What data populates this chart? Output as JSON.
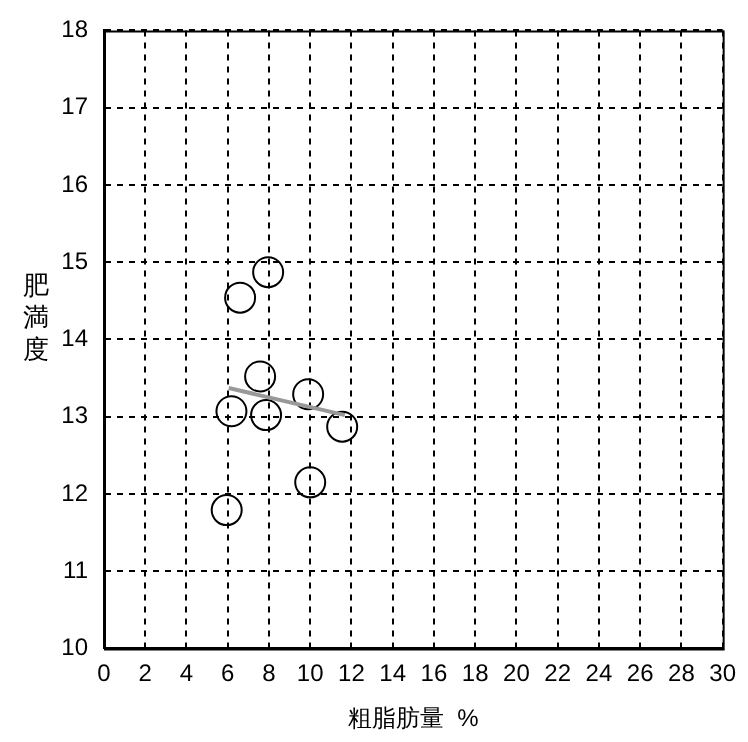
{
  "chart_data": {
    "type": "scatter",
    "xlabel": "粗脂肪量  %",
    "ylabel": "肥満度",
    "xlim": [
      0,
      30
    ],
    "xticks": [
      0,
      2,
      4,
      6,
      8,
      10,
      12,
      14,
      16,
      18,
      20,
      22,
      24,
      26,
      28,
      30
    ],
    "ylim": [
      10,
      18
    ],
    "yticks": [
      10,
      11,
      12,
      13,
      14,
      15,
      16,
      17,
      18
    ],
    "grid": true,
    "legend": false,
    "marker": "circle",
    "series": [
      {
        "color": "#000000",
        "x": [
          7.96,
          6.6,
          7.57,
          9.9,
          6.18,
          7.86,
          11.55,
          10.0,
          5.95
        ],
        "values": [
          14.87,
          14.54,
          13.52,
          13.29,
          13.07,
          13.02,
          12.87,
          12.15,
          11.79
        ]
      },
      {
        "type": "line",
        "color": "#999999",
        "line_style": "solid",
        "marker": "none",
        "x": [
          6.05,
          11.68
        ],
        "values": [
          13.37,
          13.02
        ]
      }
    ]
  }
}
